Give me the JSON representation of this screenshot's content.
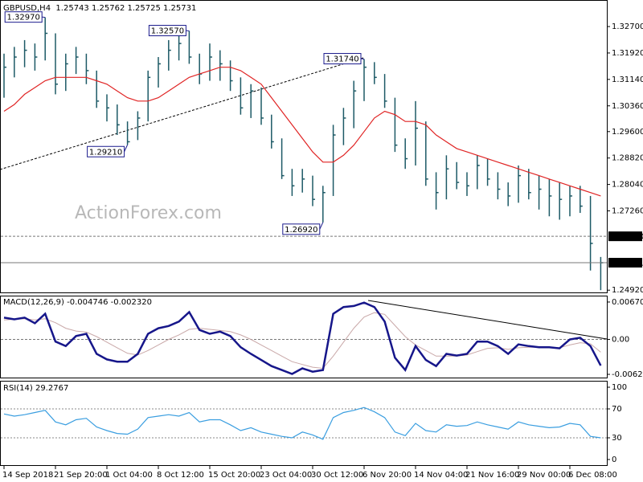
{
  "chart_data": [
    {
      "type": "ohlc",
      "title": "GBPUSD,H4  1.25743 1.25762 1.25725 1.25731",
      "watermark": "ActionForex.com",
      "categories": [
        "14 Sep 2018",
        null,
        null,
        null,
        null,
        "21 Sep 20:00",
        null,
        null,
        null,
        null,
        "1 Oct 04:00",
        null,
        null,
        null,
        null,
        "8 Oct 12:00",
        null,
        null,
        null,
        null,
        "15 Oct 20:00",
        null,
        null,
        null,
        null,
        "23 Oct 04:00",
        null,
        null,
        null,
        null,
        "30 Oct 12:00",
        null,
        null,
        null,
        null,
        "6 Nov 20:00",
        null,
        null,
        null,
        null,
        "14 Nov 04:00",
        null,
        null,
        null,
        null,
        "21 Nov 16:00",
        null,
        null,
        null,
        null,
        "29 Nov 00:00",
        null,
        null,
        null,
        null,
        "6 Dec 08:00",
        null,
        null,
        null
      ],
      "color": "#1d5a66",
      "high": [
        1.319,
        1.321,
        1.323,
        1.322,
        1.3297,
        1.325,
        1.319,
        1.321,
        1.319,
        1.314,
        1.307,
        1.304,
        1.299,
        1.302,
        1.314,
        1.318,
        1.323,
        1.325,
        1.3257,
        1.319,
        1.322,
        1.32,
        1.317,
        1.312,
        1.31,
        1.309,
        1.301,
        1.294,
        1.285,
        1.285,
        1.283,
        1.28,
        1.298,
        1.303,
        1.311,
        1.3174,
        1.3165,
        1.313,
        1.306,
        1.294,
        1.305,
        1.299,
        1.284,
        1.289,
        1.287,
        1.284,
        1.289,
        1.288,
        1.284,
        1.281,
        1.286,
        1.285,
        1.283,
        1.282,
        1.281,
        1.28,
        1.28,
        1.277,
        1.259
      ],
      "low": [
        1.306,
        1.312,
        1.315,
        1.314,
        1.317,
        1.307,
        1.308,
        1.313,
        1.31,
        1.303,
        1.299,
        1.295,
        1.2921,
        1.2935,
        1.299,
        1.309,
        1.314,
        1.317,
        1.316,
        1.31,
        1.311,
        1.311,
        1.308,
        1.301,
        1.3,
        1.298,
        1.291,
        1.282,
        1.277,
        1.278,
        1.274,
        1.2692,
        1.277,
        1.292,
        1.297,
        1.305,
        1.31,
        1.303,
        1.29,
        1.285,
        1.286,
        1.28,
        1.273,
        1.276,
        1.279,
        1.277,
        1.279,
        1.28,
        1.276,
        1.274,
        1.275,
        1.276,
        1.273,
        1.271,
        1.27,
        1.271,
        1.272,
        1.255,
        1.2492
      ],
      "close": [
        1.315,
        1.318,
        1.32,
        1.318,
        1.325,
        1.31,
        1.316,
        1.318,
        1.314,
        1.305,
        1.303,
        1.298,
        1.293,
        1.3,
        1.312,
        1.316,
        1.32,
        1.322,
        1.318,
        1.313,
        1.318,
        1.316,
        1.311,
        1.303,
        1.308,
        1.3,
        1.293,
        1.283,
        1.28,
        1.282,
        1.276,
        1.278,
        1.295,
        1.3,
        1.308,
        1.315,
        1.312,
        1.305,
        1.292,
        1.288,
        1.297,
        1.282,
        1.278,
        1.285,
        1.281,
        1.28,
        1.286,
        1.282,
        1.279,
        1.277,
        1.283,
        1.278,
        1.279,
        1.277,
        1.276,
        1.277,
        1.274,
        1.263,
        1.2573
      ],
      "ma": {
        "color": "#e02424",
        "values": [
          1.302,
          1.304,
          1.307,
          1.309,
          1.311,
          1.312,
          1.312,
          1.312,
          1.312,
          1.311,
          1.31,
          1.308,
          1.306,
          1.305,
          1.305,
          1.306,
          1.308,
          1.31,
          1.312,
          1.313,
          1.314,
          1.315,
          1.315,
          1.314,
          1.312,
          1.31,
          1.306,
          1.302,
          1.298,
          1.294,
          1.29,
          1.287,
          1.287,
          1.289,
          1.292,
          1.296,
          1.3,
          1.302,
          1.301,
          1.299,
          1.299,
          1.298,
          1.295,
          1.293,
          1.291,
          1.29,
          1.289,
          1.288,
          1.287,
          1.286,
          1.285,
          1.284,
          1.283,
          1.282,
          1.281,
          1.28,
          1.279,
          1.278,
          1.277
        ]
      },
      "annotations": [
        {
          "label": "1.32970",
          "value": 1.3297,
          "index": 4
        },
        {
          "label": "1.32570",
          "value": 1.3257,
          "index": 18
        },
        {
          "label": "1.29210",
          "value": 1.2921,
          "index": 12
        },
        {
          "label": "1.31740",
          "value": 1.3174,
          "index": 35
        },
        {
          "label": "1.26920",
          "value": 1.2692,
          "index": 31
        }
      ],
      "levels": [
        {
          "value": 1.2651,
          "label": "1.26510"
        },
        {
          "value": 1.25731,
          "label": "1.25731"
        }
      ],
      "ylim": [
        1.2483,
        1.3346
      ],
      "yticks": [
        {
          "value": 1.327,
          "label": "1.32700"
        },
        {
          "value": 1.3192,
          "label": "1.31920"
        },
        {
          "value": 1.3114,
          "label": "1.31140"
        },
        {
          "value": 1.3036,
          "label": "1.30360"
        },
        {
          "value": 1.296,
          "label": "1.29600"
        },
        {
          "value": 1.2882,
          "label": "1.28820"
        },
        {
          "value": 1.2804,
          "label": "1.28040"
        },
        {
          "value": 1.2726,
          "label": "1.27260"
        },
        {
          "value": 1.2492,
          "label": "1.24920"
        }
      ]
    },
    {
      "type": "macd",
      "title": "MACD(12,26,9) -0.004746 -0.002320",
      "series": [
        {
          "color": "#16168a",
          "values": [
            0.0039,
            0.0036,
            0.0039,
            0.0029,
            0.0046,
            -0.0004,
            -0.0012,
            0.0006,
            0.001,
            -0.0026,
            -0.0036,
            -0.004,
            -0.004,
            -0.0026,
            0.001,
            0.002,
            0.0024,
            0.0032,
            0.0049,
            0.0017,
            0.001,
            0.0014,
            0.0006,
            -0.0014,
            -0.0026,
            -0.0037,
            -0.0048,
            -0.0055,
            -0.0062,
            -0.0052,
            -0.0058,
            -0.0055,
            0.0046,
            0.0058,
            0.006,
            0.0066,
            0.0058,
            0.0032,
            -0.0033,
            -0.0055,
            -0.0012,
            -0.0037,
            -0.0048,
            -0.0026,
            -0.0029,
            -0.0026,
            -0.0004,
            -0.0004,
            -0.0012,
            -0.0026,
            -0.0009,
            -0.0012,
            -0.0014,
            -0.0014,
            -0.0016,
            0.0,
            0.0003,
            -0.0012,
            -0.0047
          ]
        },
        {
          "color": "#c9a8a8",
          "values": [
            0.0035,
            0.0036,
            0.0037,
            0.0035,
            0.0037,
            0.003,
            0.002,
            0.0015,
            0.0013,
            0.0005,
            -0.0005,
            -0.0015,
            -0.0025,
            -0.0028,
            -0.002,
            -0.001,
            0.0,
            0.0008,
            0.0018,
            0.002,
            0.0018,
            0.0016,
            0.0014,
            0.0008,
            0.0,
            -0.001,
            -0.002,
            -0.003,
            -0.004,
            -0.0045,
            -0.005,
            -0.0052,
            -0.003,
            -0.0005,
            0.002,
            0.004,
            0.0048,
            0.0045,
            0.0025,
            0.0005,
            -0.001,
            -0.002,
            -0.003,
            -0.003,
            -0.003,
            -0.0028,
            -0.0022,
            -0.0016,
            -0.0015,
            -0.0018,
            -0.0015,
            -0.0014,
            -0.0014,
            -0.0014,
            -0.0015,
            -0.001,
            -0.0006,
            -0.0008,
            -0.0023
          ]
        }
      ],
      "levels": [
        0
      ],
      "ylim": [
        -0.007,
        0.00771
      ],
      "yticks": [
        0.006706,
        {
          "value": 0,
          "label": "0.00"
        },
        -0.00628
      ]
    },
    {
      "type": "rsi",
      "title": "RSI(14) 29.2767",
      "color": "#3a9ee0",
      "values": [
        63,
        60,
        62,
        65,
        68,
        52,
        48,
        55,
        57,
        45,
        40,
        36,
        35,
        42,
        58,
        60,
        62,
        60,
        65,
        52,
        55,
        55,
        48,
        40,
        44,
        38,
        35,
        32,
        30,
        38,
        34,
        28,
        58,
        65,
        68,
        72,
        66,
        58,
        38,
        33,
        50,
        40,
        38,
        48,
        46,
        47,
        52,
        48,
        45,
        42,
        52,
        48,
        46,
        44,
        45,
        50,
        48,
        32,
        30
      ],
      "levels": [
        70,
        30
      ],
      "ylim": [
        -8.9,
        107.8
      ],
      "yticks": [
        100,
        70,
        30,
        0
      ]
    }
  ]
}
